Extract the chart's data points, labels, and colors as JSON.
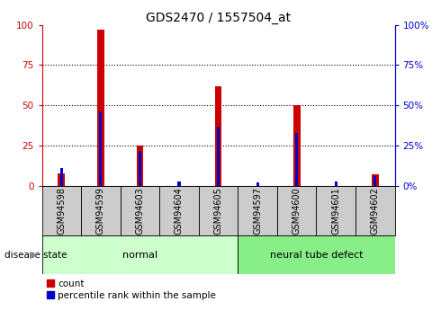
{
  "title": "GDS2470 / 1557504_at",
  "samples": [
    "GSM94598",
    "GSM94599",
    "GSM94603",
    "GSM94604",
    "GSM94605",
    "GSM94597",
    "GSM94600",
    "GSM94601",
    "GSM94602"
  ],
  "red_values": [
    8,
    97,
    25,
    0,
    62,
    0,
    50,
    0,
    7
  ],
  "blue_values": [
    11,
    46,
    22,
    3,
    37,
    2,
    33,
    3,
    6
  ],
  "groups": [
    {
      "label": "normal",
      "start": 0,
      "end": 5,
      "color": "#ccffcc"
    },
    {
      "label": "neural tube defect",
      "start": 5,
      "end": 9,
      "color": "#88ee88"
    }
  ],
  "ylim": [
    0,
    100
  ],
  "yticks": [
    0,
    25,
    50,
    75,
    100
  ],
  "left_axis_color": "#cc0000",
  "right_axis_color": "#0000cc",
  "bar_red": "#cc0000",
  "bar_blue": "#0000cc",
  "red_bar_width": 0.18,
  "blue_bar_width": 0.07,
  "grid_color": "#000000",
  "bg_color": "#ffffff",
  "tick_bg": "#cccccc",
  "legend_count_label": "count",
  "legend_pct_label": "percentile rank within the sample",
  "disease_state_label": "disease state",
  "title_fontsize": 10,
  "tick_fontsize": 7.5,
  "label_fontsize": 7,
  "group_fontsize": 8
}
